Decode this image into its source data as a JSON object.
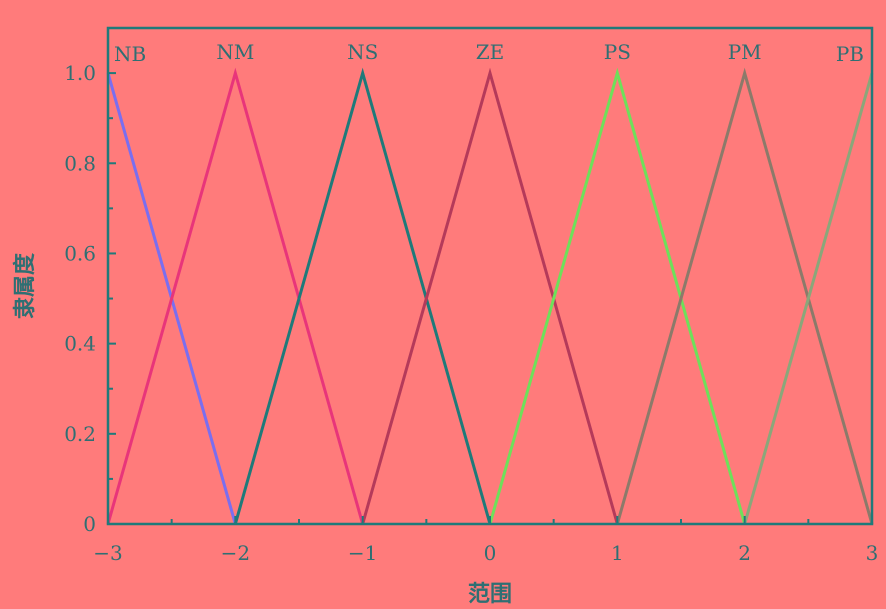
{
  "chart_data": {
    "type": "line",
    "title": "",
    "xlabel": "范围",
    "ylabel": "隶属度",
    "xlim": [
      -3,
      3
    ],
    "ylim": [
      0,
      1.1
    ],
    "x_ticks": [
      -3,
      -2,
      -1,
      0,
      1,
      2,
      3
    ],
    "x_tick_labels": [
      "−3",
      "−2",
      "−1",
      "0",
      "1",
      "2",
      "3"
    ],
    "y_ticks": [
      0,
      0.2,
      0.4,
      0.6,
      0.8,
      1.0
    ],
    "y_tick_labels": [
      "0",
      "0.2",
      "0.4",
      "0.6",
      "0.8",
      "1.0"
    ],
    "grid": false,
    "series": [
      {
        "name": "NB",
        "color": "#7a6ef0",
        "x": [
          -3,
          -2
        ],
        "y": [
          1,
          0
        ]
      },
      {
        "name": "NM",
        "color": "#e8357a",
        "x": [
          -3,
          -2,
          -1
        ],
        "y": [
          0,
          1,
          0
        ]
      },
      {
        "name": "NS",
        "color": "#1f7a7a",
        "x": [
          -2,
          -1,
          0
        ],
        "y": [
          0,
          1,
          0
        ]
      },
      {
        "name": "ZE",
        "color": "#b53a5a",
        "x": [
          -1,
          0,
          1
        ],
        "y": [
          0,
          1,
          0
        ]
      },
      {
        "name": "PS",
        "color": "#6ee05a",
        "x": [
          0,
          1,
          2
        ],
        "y": [
          0,
          1,
          0
        ]
      },
      {
        "name": "PM",
        "color": "#8c7a6a",
        "x": [
          1,
          2,
          3
        ],
        "y": [
          0,
          1,
          0
        ]
      },
      {
        "name": "PB",
        "color": "#8aa77a",
        "x": [
          2,
          3
        ],
        "y": [
          0,
          1
        ]
      }
    ],
    "axis_color": "#1f7a7a"
  }
}
